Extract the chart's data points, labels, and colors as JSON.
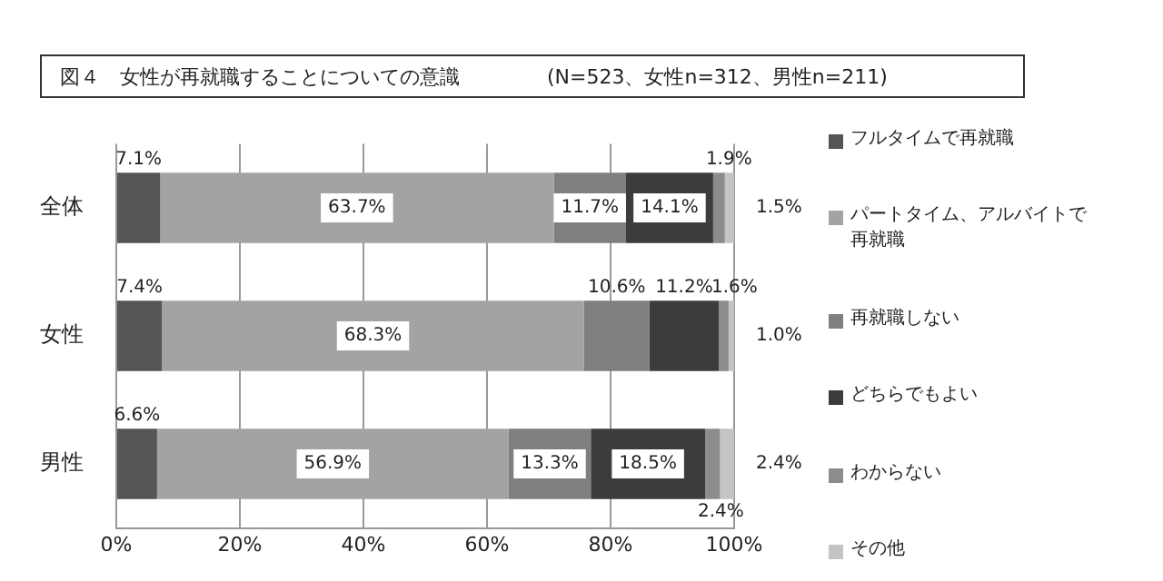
{
  "chart_data": {
    "type": "bar",
    "orientation": "horizontal",
    "stacked": true,
    "title": "図４　女性が再就職することについての意識",
    "subtitle": "(N=523、女性n=312、男性n=211)",
    "categories": [
      "全体",
      "女性",
      "男性"
    ],
    "series": [
      {
        "name": "フルタイムで再就職",
        "color": "#555555",
        "values": [
          7.1,
          7.4,
          6.6
        ],
        "value_labels": [
          "7.1%",
          "7.4%",
          "6.6%"
        ]
      },
      {
        "name": "パートタイム、アルバイトで再就職",
        "color": "#a3a3a3",
        "values": [
          63.7,
          68.3,
          56.9
        ],
        "value_labels": [
          "63.7%",
          "68.3%",
          "56.9%"
        ]
      },
      {
        "name": "再就職しない",
        "color": "#7f7f7f",
        "values": [
          11.7,
          10.6,
          13.3
        ],
        "value_labels": [
          "11.7%",
          "10.6%",
          "13.3%"
        ]
      },
      {
        "name": "どちらでもよい",
        "color": "#3c3c3c",
        "values": [
          14.1,
          11.2,
          18.5
        ],
        "value_labels": [
          "14.1%",
          "11.2%",
          "18.5%"
        ]
      },
      {
        "name": "わからない",
        "color": "#8c8c8c",
        "values": [
          1.9,
          1.6,
          2.4
        ],
        "value_labels": [
          "1.9%",
          "1.6%",
          "2.4%"
        ]
      },
      {
        "name": "その他",
        "color": "#c4c4c4",
        "values": [
          1.5,
          1.0,
          2.4
        ],
        "value_labels": [
          "1.5%",
          "1.0%",
          "2.4%"
        ]
      }
    ],
    "xlim": [
      0,
      100
    ],
    "xticks": [
      {
        "value": 0,
        "label": "0%"
      },
      {
        "value": 20,
        "label": "20%"
      },
      {
        "value": 40,
        "label": "40%"
      },
      {
        "value": 60,
        "label": "60%"
      },
      {
        "value": 80,
        "label": "80%"
      },
      {
        "value": 100,
        "label": "100%"
      }
    ],
    "grid": "x",
    "legend": "right"
  }
}
